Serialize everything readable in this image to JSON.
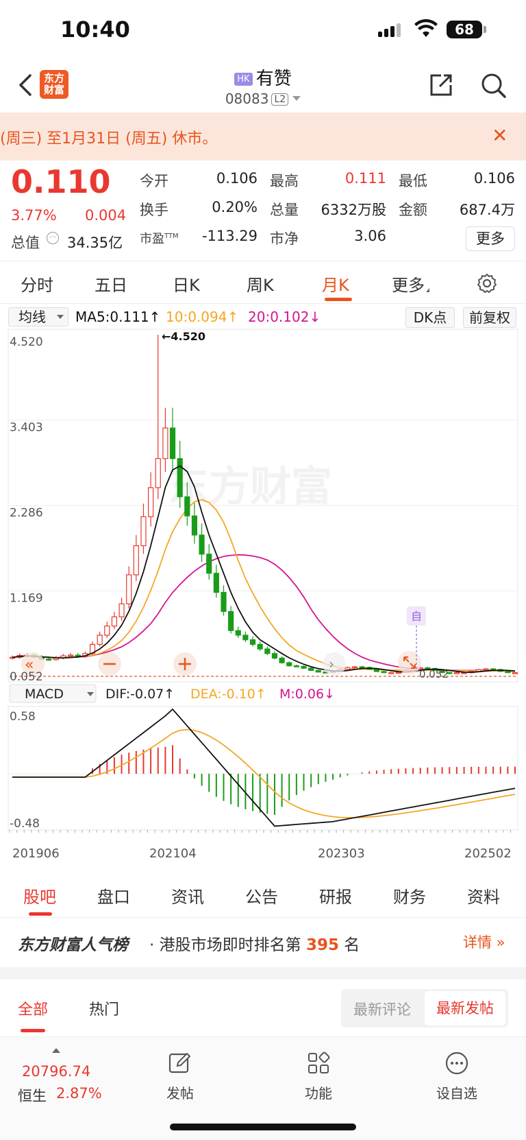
{
  "status": {
    "time": "10:40",
    "battery": "68"
  },
  "nav": {
    "brand_logo": "东方\n财富",
    "market_tag": "HK",
    "stock_name": "有赞",
    "stock_code": "08083",
    "level": "L2"
  },
  "notice": {
    "text": "(周三) 至1月31日 (周五) 休市。"
  },
  "quote": {
    "price": "0.110",
    "change_pct": "3.77%",
    "change": "0.004",
    "open_label": "今开",
    "open": "0.106",
    "high_label": "最高",
    "high": "0.111",
    "low_label": "最低",
    "low": "0.106",
    "turnover_label": "换手",
    "turnover": "0.20%",
    "volume_label": "总量",
    "volume": "6332万股",
    "amount_label": "金额",
    "amount": "687.4万",
    "mktcap_label": "总值",
    "mktcap": "34.35亿",
    "pe_label": "市盈",
    "pe_sup": "TTM",
    "pe": "-113.29",
    "pb_label": "市净",
    "pb": "3.06",
    "more": "更多"
  },
  "period_tabs": {
    "items": [
      "分时",
      "五日",
      "日K",
      "周K",
      "月K",
      "更多"
    ],
    "active": "月K"
  },
  "ma_header": {
    "selector": "均线",
    "ma5": "MA5:0.111↑",
    "ma10": "10:0.094↑",
    "ma20": "20:0.102↓",
    "dk": "DK点",
    "adjust": "前复权"
  },
  "macd_header": {
    "selector": "MACD",
    "dif": "DIF:-0.07↑",
    "dea": "DEA:-0.10↑",
    "m": "M:0.06↓"
  },
  "colors": {
    "up": "#e8382f",
    "down": "#1a9c1a",
    "ma5": "#111111",
    "ma10": "#f5a623",
    "ma20": "#d4148f",
    "accent": "#e8541e"
  },
  "chart_data": [
    {
      "type": "candlestick",
      "title": "",
      "y_ticks": [
        "4.520",
        "3.403",
        "2.286",
        "1.169",
        "0.052"
      ],
      "ylim": [
        0.052,
        4.52
      ],
      "max_label": "←4.520",
      "current_label": "0.052",
      "watermark": "东方财富",
      "self_marker": "自",
      "grid": true,
      "ma_colors": {
        "ma5": "#111111",
        "ma10": "#f5a623",
        "ma20": "#d4148f"
      }
    },
    {
      "type": "bar",
      "title": "MACD",
      "y_ticks": [
        "0.58",
        "-0.48"
      ],
      "ylim": [
        -0.48,
        0.58
      ],
      "x_ticks": [
        "201906",
        "202104",
        "202303",
        "202502"
      ]
    }
  ],
  "bottom_tabs": {
    "items": [
      "股吧",
      "盘口",
      "资讯",
      "公告",
      "研报",
      "财务",
      "资料"
    ],
    "active": "股吧"
  },
  "rank": {
    "brand": "东方财富人气榜",
    "text_prefix": "· 港股市场即时排名第 ",
    "number": "395",
    "text_suffix": " 名",
    "detail": "详情 »"
  },
  "feed_tabs": {
    "items": [
      "全部",
      "热门"
    ],
    "sort_options": [
      "最新评论",
      "最新发帖"
    ],
    "active_sort": "最新发帖"
  },
  "toolbar": {
    "index_value": "20796.74",
    "index_name": "恒生",
    "index_pct": "2.87%",
    "post": "发帖",
    "functions": "功能",
    "watchlist": "设自选"
  }
}
